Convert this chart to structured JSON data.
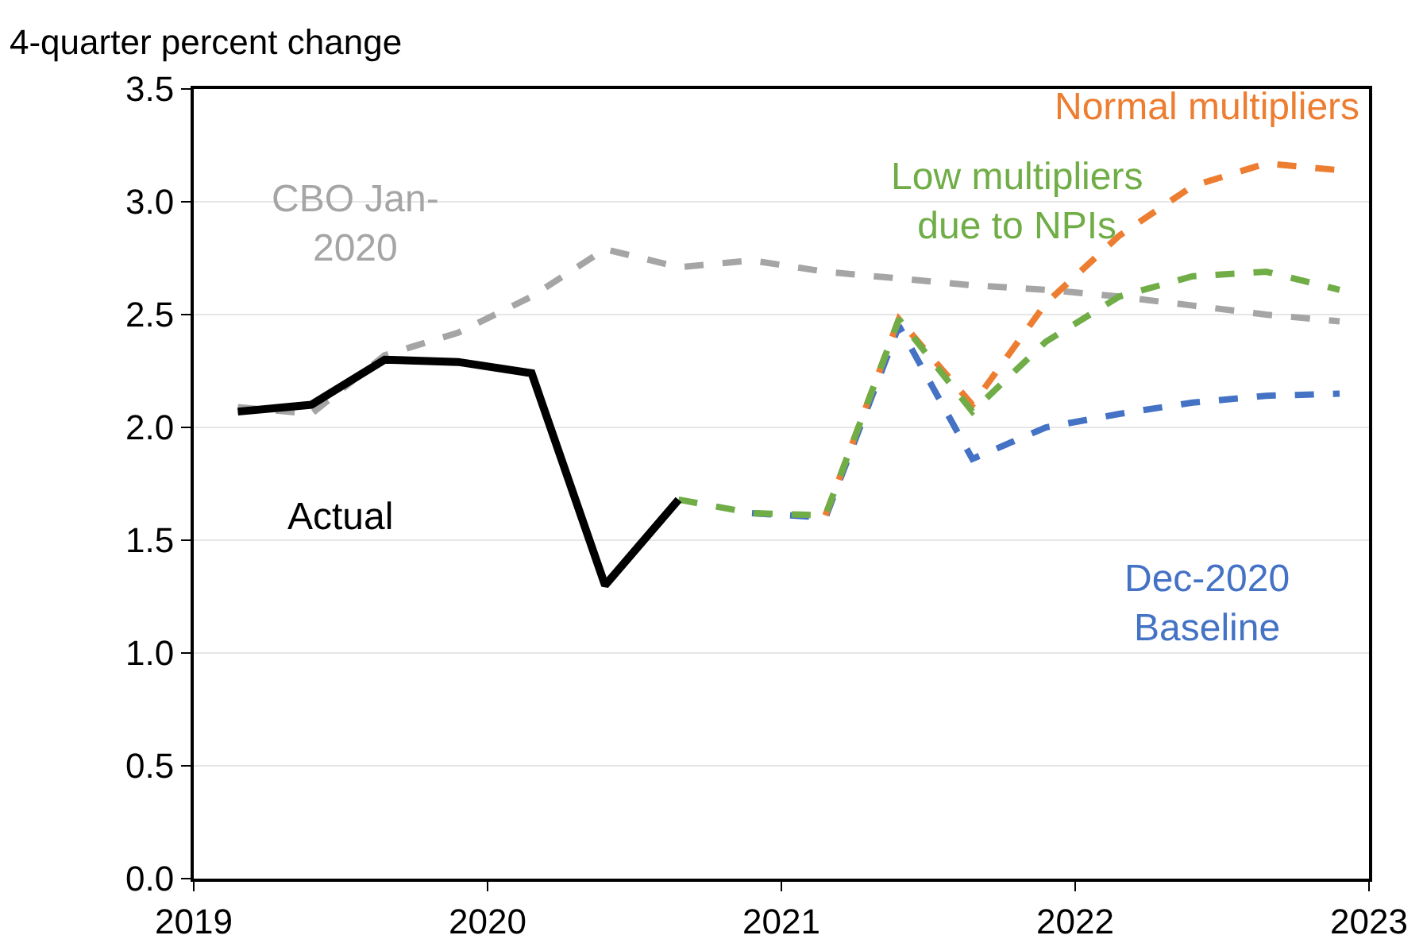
{
  "chart_data": {
    "type": "line",
    "ylabel": "4-quarter percent change",
    "xlim": [
      2019,
      2023
    ],
    "xticks": [
      2019,
      2020,
      2021,
      2022,
      2023
    ],
    "ylim": [
      0,
      3.5
    ],
    "yticks": [
      {
        "value": 0,
        "label": "0.0"
      },
      {
        "value": 0.5,
        "label": "0.5"
      },
      {
        "value": 1,
        "label": "1.0"
      },
      {
        "value": 1.5,
        "label": "1.5"
      },
      {
        "value": 2,
        "label": "2.0"
      },
      {
        "value": 2.5,
        "label": "2.5"
      },
      {
        "value": 3,
        "label": "3.0"
      },
      {
        "value": 3.5,
        "label": "3.5"
      }
    ],
    "grid": "y",
    "legend": false,
    "series": [
      {
        "name": "CBO Jan-\n2020",
        "color": "#a5a5a5",
        "line_style": "dashed",
        "x": [
          2019.15,
          2019.4,
          2019.65,
          2019.9,
          2020.15,
          2020.4,
          2020.65,
          2020.9,
          2021.15,
          2021.4,
          2021.65,
          2021.9,
          2022.15,
          2022.4,
          2022.65,
          2022.9
        ],
        "values": [
          2.09,
          2.06,
          2.32,
          2.42,
          2.58,
          2.79,
          2.71,
          2.74,
          2.69,
          2.66,
          2.63,
          2.61,
          2.58,
          2.54,
          2.5,
          2.47
        ]
      },
      {
        "name": "Dec-2020\nBaseline",
        "color": "#4472c4",
        "line_style": "dashed",
        "x": [
          2020.9,
          2021.15,
          2021.4,
          2021.65,
          2021.9,
          2022.15,
          2022.4,
          2022.65,
          2022.9
        ],
        "values": [
          1.62,
          1.6,
          2.45,
          1.86,
          2.0,
          2.06,
          2.11,
          2.14,
          2.15
        ]
      },
      {
        "name": "Normal multipliers",
        "color": "#ed7d31",
        "line_style": "dashed",
        "x": [
          2021.15,
          2021.4,
          2021.65,
          2021.9,
          2022.15,
          2022.4,
          2022.65,
          2022.9
        ],
        "values": [
          1.61,
          2.48,
          2.1,
          2.55,
          2.85,
          3.07,
          3.17,
          3.14
        ]
      },
      {
        "name": "Low multipliers\ndue to NPIs",
        "color": "#70ad47",
        "line_style": "dashed",
        "x": [
          2020.65,
          2020.9,
          2021.15,
          2021.4,
          2021.65,
          2021.9,
          2022.15,
          2022.4,
          2022.65,
          2022.9
        ],
        "values": [
          1.68,
          1.62,
          1.61,
          2.48,
          2.07,
          2.38,
          2.58,
          2.67,
          2.69,
          2.61
        ]
      },
      {
        "name": "Actual",
        "color": "#000000",
        "line_style": "solid",
        "x": [
          2019.15,
          2019.4,
          2019.65,
          2019.9,
          2020.15,
          2020.4,
          2020.65
        ],
        "values": [
          2.07,
          2.1,
          2.3,
          2.29,
          2.24,
          1.3,
          1.68
        ]
      }
    ]
  }
}
